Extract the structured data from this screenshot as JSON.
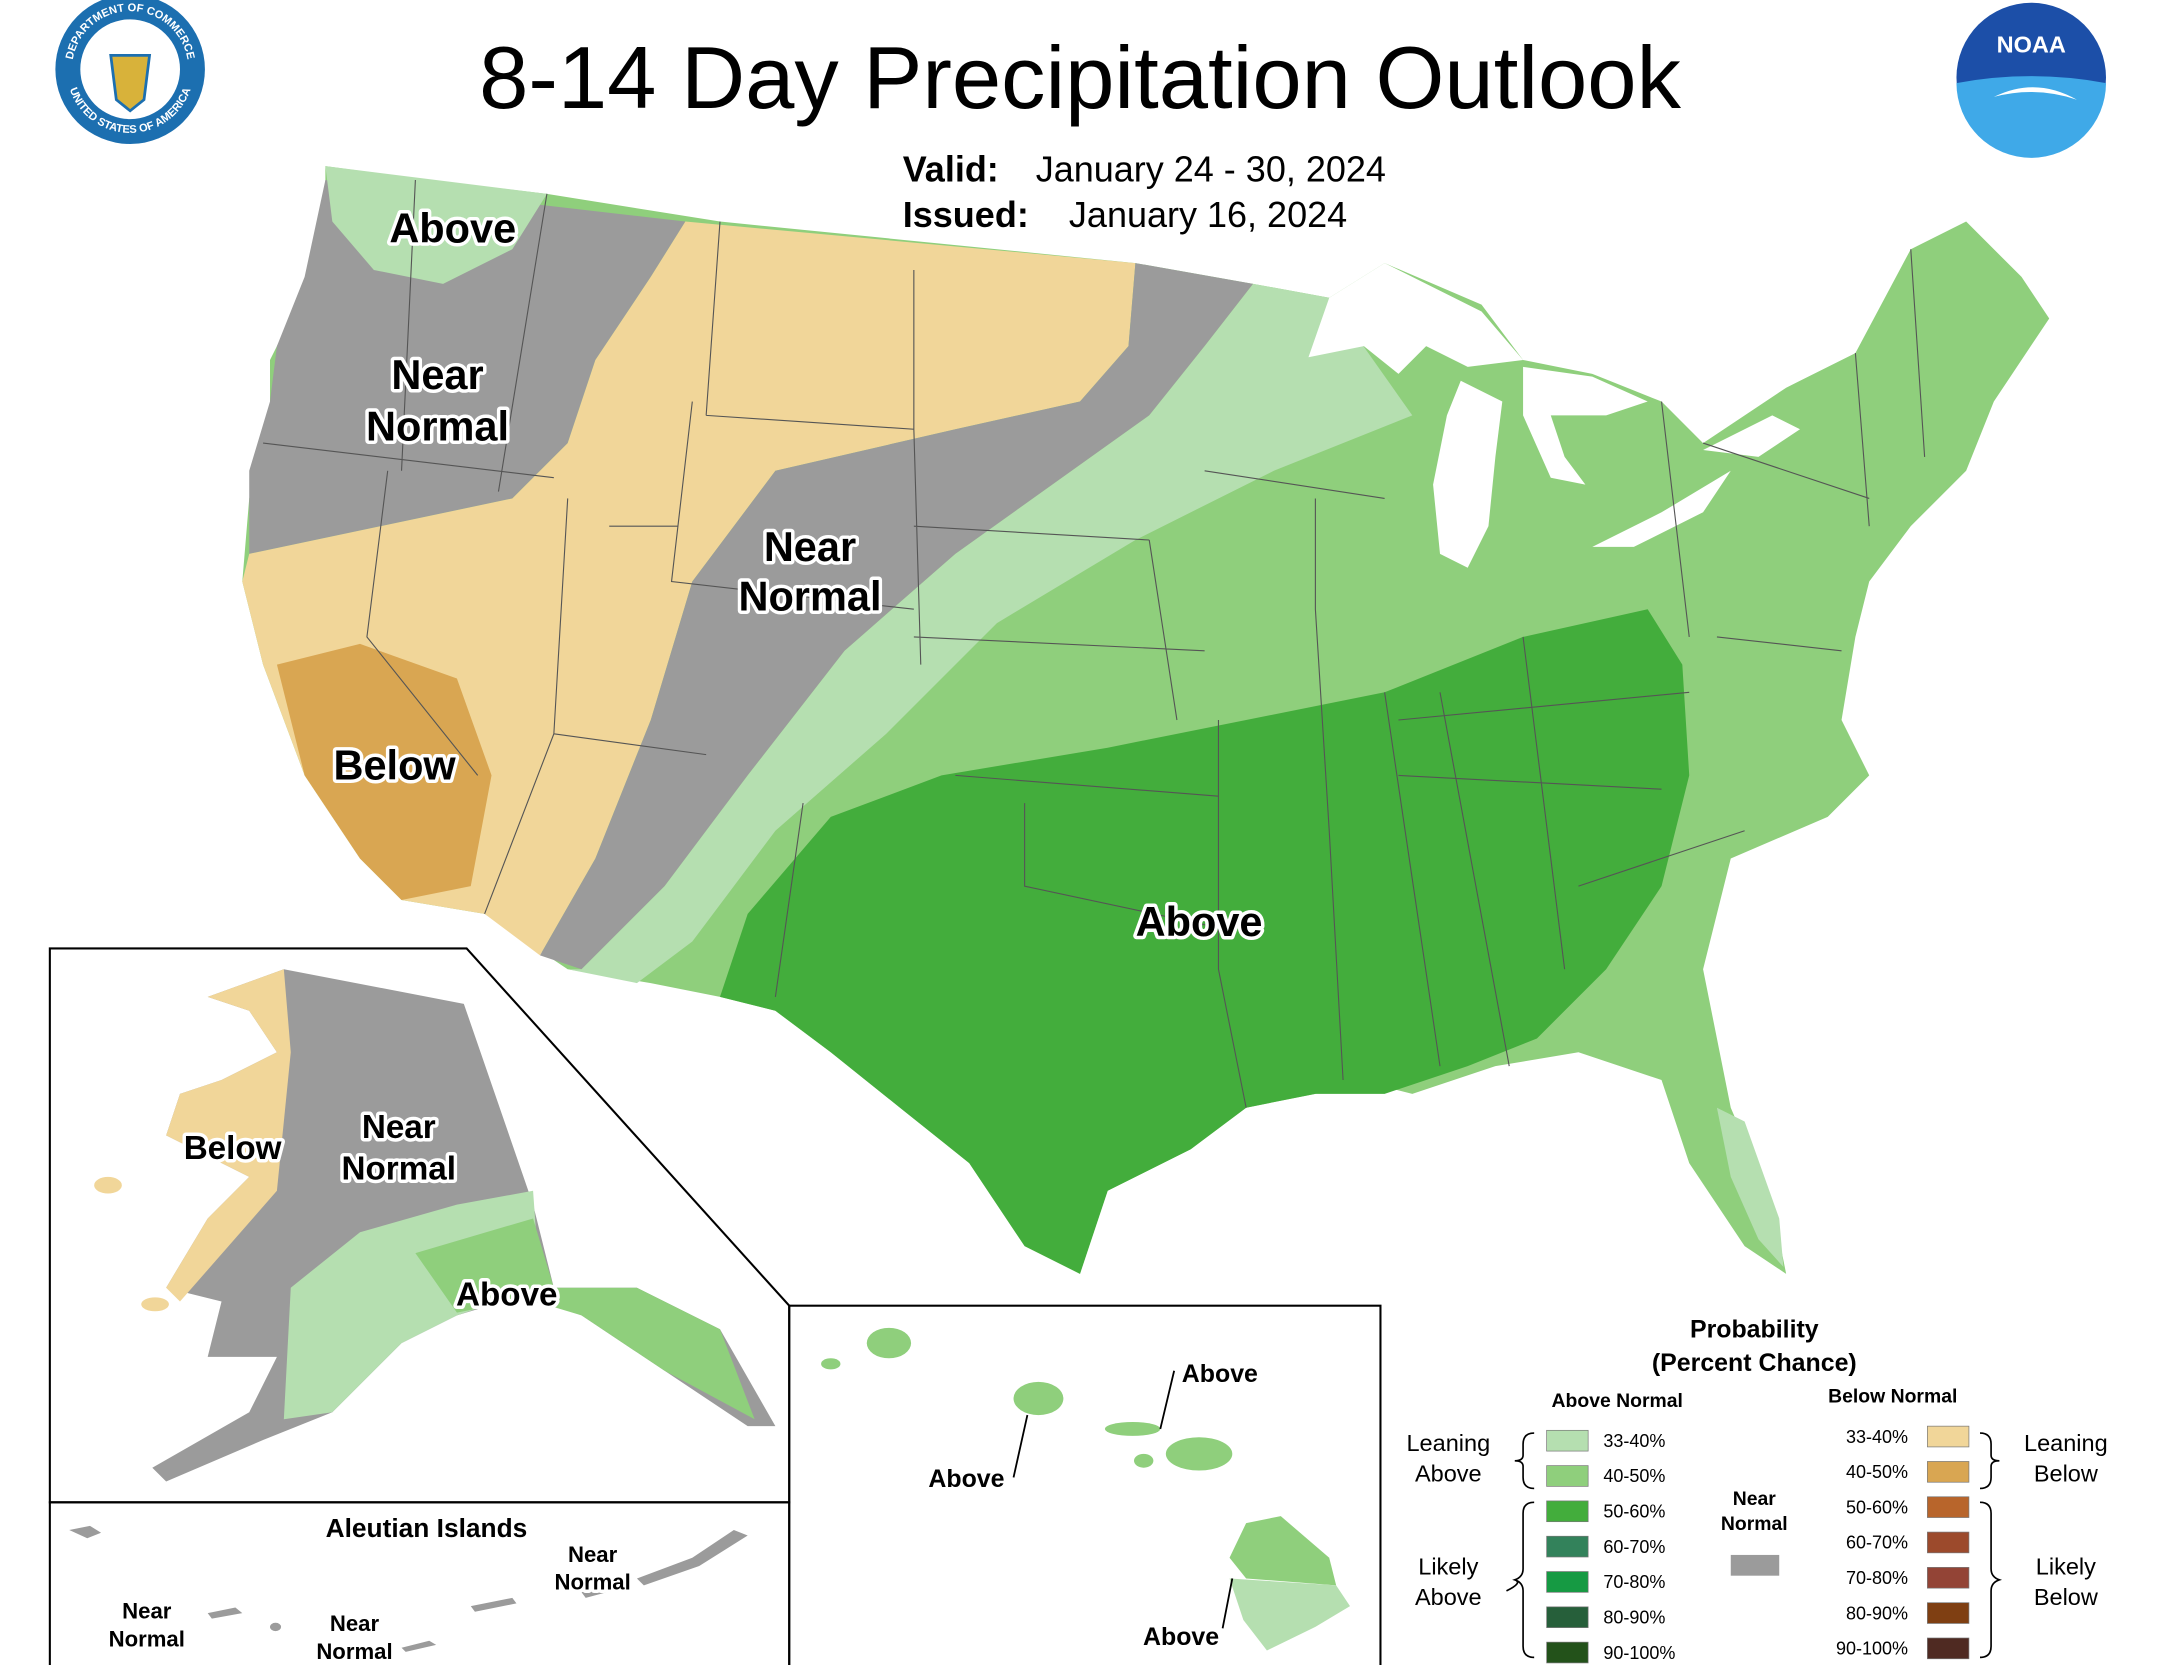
{
  "title": "8-14 Day Precipitation Outlook",
  "valid": {
    "label": "Valid:",
    "value": "January 24 - 30, 2024"
  },
  "issued": {
    "label": "Issued:",
    "value": "January 16, 2024"
  },
  "logos": {
    "seal": [
      "DEPARTMENT OF COMMERCE",
      "UNITED STATES OF AMERICA"
    ],
    "noaa": "NOAA"
  },
  "conus_labels": {
    "northwest": "Above",
    "west_near_normal": [
      "Near",
      "Normal"
    ],
    "central_near_normal": [
      "Near",
      "Normal"
    ],
    "california": "Below",
    "south": "Above"
  },
  "alaska_labels": {
    "west": "Below",
    "interior": [
      "Near",
      "Normal"
    ],
    "south": "Above"
  },
  "aleutian": {
    "title": "Aleutian Islands",
    "east": [
      "Near",
      "Normal"
    ],
    "west": [
      "Near",
      "Normal"
    ],
    "central": [
      "Near",
      "Normal"
    ]
  },
  "hawaii_labels": {
    "maui": "Above",
    "oahu": "Above",
    "big_island": "Above"
  },
  "legend": {
    "title": [
      "Probability",
      "(Percent Chance)"
    ],
    "above": {
      "header": "Above Normal",
      "items": [
        {
          "label": "33-40%",
          "color": "#b5dfb0"
        },
        {
          "label": "40-50%",
          "color": "#8fcf7c"
        },
        {
          "label": "50-60%",
          "color": "#43ad3c"
        },
        {
          "label": "60-70%",
          "color": "#33825b"
        },
        {
          "label": "70-80%",
          "color": "#169a43"
        },
        {
          "label": "80-90%",
          "color": "#265f3a"
        },
        {
          "label": "90-100%",
          "color": "#23521a"
        }
      ]
    },
    "below": {
      "header": "Below Normal",
      "items": [
        {
          "label": "33-40%",
          "color": "#f1d699"
        },
        {
          "label": "40-50%",
          "color": "#d9a652"
        },
        {
          "label": "50-60%",
          "color": "#b8652b"
        },
        {
          "label": "60-70%",
          "color": "#9c4a2c"
        },
        {
          "label": "70-80%",
          "color": "#934436"
        },
        {
          "label": "80-90%",
          "color": "#7f3f12"
        },
        {
          "label": "90-100%",
          "color": "#4f2a22"
        }
      ]
    },
    "near_normal": {
      "label": [
        "Near",
        "Normal"
      ],
      "color": "#9b9b9b"
    },
    "groups": {
      "leaning_above": [
        "Leaning",
        "Above"
      ],
      "likely_above": [
        "Likely",
        "Above"
      ],
      "leaning_below": [
        "Leaning",
        "Below"
      ],
      "likely_below": [
        "Likely",
        "Below"
      ]
    }
  }
}
